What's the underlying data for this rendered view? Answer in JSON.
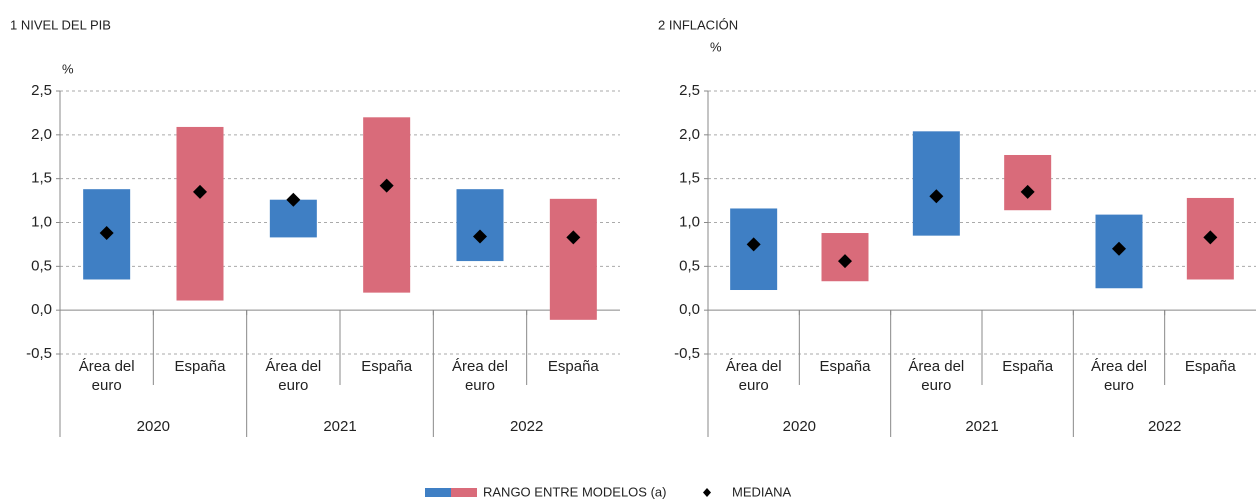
{
  "chart_data": [
    {
      "type": "range",
      "title": "1 NIVEL DEL PIB",
      "y_label": "%",
      "categories": [
        "Área del euro",
        "España",
        "Área del euro",
        "España",
        "Área del euro",
        "España"
      ],
      "groups": [
        "2020",
        "2021",
        "2022"
      ],
      "colors": [
        "#3f7fc4",
        "#d96b7a",
        "#3f7fc4",
        "#d96b7a",
        "#3f7fc4",
        "#d96b7a"
      ],
      "low": [
        0.35,
        0.11,
        0.83,
        0.2,
        0.56,
        -0.11
      ],
      "high": [
        1.38,
        2.09,
        1.26,
        2.2,
        1.38,
        1.27
      ],
      "median": [
        0.88,
        1.35,
        1.26,
        1.42,
        0.84,
        0.83
      ],
      "ylim": [
        -0.5,
        2.5
      ],
      "yticks": [
        {
          "value": -0.5,
          "label": "-0,5"
        },
        {
          "value": 0,
          "label": "0,0"
        },
        {
          "value": 0.5,
          "label": "0,5"
        },
        {
          "value": 1,
          "label": "1,0"
        },
        {
          "value": 1.5,
          "label": "1,5"
        },
        {
          "value": 2,
          "label": "2,0"
        },
        {
          "value": 2.5,
          "label": "2,5"
        }
      ],
      "grid": true
    },
    {
      "type": "range",
      "title": "2 INFLACIÓN",
      "y_label": "%",
      "categories": [
        "Área del euro",
        "España",
        "Área del euro",
        "España",
        "Área del euro",
        "España"
      ],
      "groups": [
        "2020",
        "2021",
        "2022"
      ],
      "colors": [
        "#3f7fc4",
        "#d96b7a",
        "#3f7fc4",
        "#d96b7a",
        "#3f7fc4",
        "#d96b7a"
      ],
      "low": [
        0.23,
        0.33,
        0.85,
        1.14,
        0.25,
        0.35
      ],
      "high": [
        1.16,
        0.88,
        2.04,
        1.77,
        1.09,
        1.28
      ],
      "median": [
        0.75,
        0.56,
        1.3,
        1.35,
        0.7,
        0.83
      ],
      "ylim": [
        -0.5,
        2.5
      ],
      "yticks": [
        {
          "value": -0.5,
          "label": "-0,5"
        },
        {
          "value": 0,
          "label": "0,0"
        },
        {
          "value": 0.5,
          "label": "0,5"
        },
        {
          "value": 1,
          "label": "1,0"
        },
        {
          "value": 1.5,
          "label": "1,5"
        },
        {
          "value": 2,
          "label": "2,0"
        },
        {
          "value": 2.5,
          "label": "2,5"
        }
      ],
      "grid": true
    }
  ],
  "legend": {
    "range": "RANGO ENTRE MODELOS (a)",
    "median": "MEDIANA"
  }
}
